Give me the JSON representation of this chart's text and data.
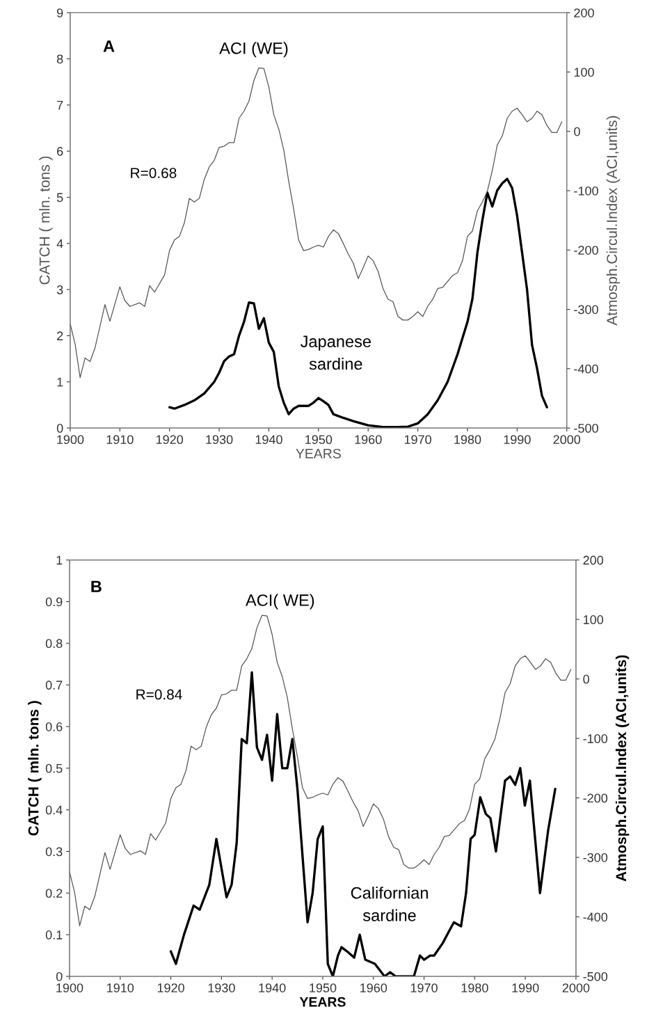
{
  "chart_data": [
    {
      "type": "line",
      "xlabel": "YEARS",
      "ylabel": "CATCH ( mln. tons )",
      "y2label": "Atmosph.Circul.Index (ACI,units)",
      "xlim": [
        1900,
        2000
      ],
      "xticks": [
        1900,
        1910,
        1920,
        1930,
        1940,
        1950,
        1960,
        1970,
        1980,
        1990,
        2000
      ],
      "ylim": [
        0,
        9
      ],
      "yticks": [
        0,
        1,
        2,
        3,
        4,
        5,
        6,
        7,
        8,
        9
      ],
      "y2lim": [
        -500,
        200
      ],
      "y2ticks": [
        -500,
        -400,
        -300,
        -200,
        -100,
        0,
        100,
        200
      ],
      "series": [
        {
          "name": "ACI (WE)",
          "axis": "y2",
          "color": "#555555",
          "x": [
            1900,
            1901,
            1902,
            1903,
            1904,
            1905,
            1907,
            1908,
            1910,
            1911,
            1912,
            1914,
            1915,
            1916,
            1917,
            1919,
            1920,
            1921,
            1922,
            1923,
            1924,
            1925,
            1926,
            1927,
            1928,
            1929,
            1930,
            1931,
            1932,
            1933,
            1934,
            1935,
            1936,
            1937,
            1938,
            1939,
            1940,
            1941,
            1942,
            1943,
            1944,
            1945,
            1946,
            1947,
            1948,
            1949,
            1950,
            1951,
            1952,
            1953,
            1954,
            1955,
            1956,
            1957,
            1958,
            1959,
            1960,
            1961,
            1962,
            1963,
            1964,
            1965,
            1966,
            1967,
            1968,
            1969,
            1970,
            1971,
            1972,
            1973,
            1974,
            1975,
            1977,
            1978,
            1979,
            1980,
            1981,
            1982,
            1983,
            1984,
            1985,
            1986,
            1987,
            1988,
            1989,
            1990,
            1991,
            1992,
            1993,
            1994,
            1995,
            1996,
            1997,
            1998,
            1999
          ],
          "values": [
            -324,
            -359,
            -415,
            -382,
            -388,
            -365,
            -292,
            -320,
            -262,
            -285,
            -295,
            -289,
            -295,
            -260,
            -271,
            -242,
            -201,
            -183,
            -177,
            -154,
            -113,
            -119,
            -113,
            -81,
            -60,
            -49,
            -27,
            -25,
            -19,
            -19,
            22,
            34,
            51,
            86,
            107,
            106,
            75,
            28,
            4,
            -31,
            -84,
            -131,
            -183,
            -201,
            -199,
            -195,
            -192,
            -195,
            -177,
            -166,
            -172,
            -189,
            -207,
            -222,
            -248,
            -230,
            -210,
            -218,
            -236,
            -265,
            -283,
            -287,
            -312,
            -318,
            -318,
            -312,
            -304,
            -312,
            -295,
            -283,
            -265,
            -263,
            -243,
            -238,
            -218,
            -177,
            -168,
            -134,
            -119,
            -101,
            -66,
            -23,
            -8,
            22,
            34,
            39,
            28,
            16,
            22,
            34,
            28,
            10,
            -2,
            -2,
            16
          ]
        },
        {
          "name": "Japanese\nsardine",
          "color": "#000000",
          "x": [
            1920,
            1921,
            1923,
            1925,
            1927,
            1929,
            1930,
            1931,
            1932,
            1933,
            1934,
            1935,
            1936,
            1937,
            1938,
            1939,
            1940,
            1941,
            1942,
            1943,
            1944,
            1945,
            1946,
            1948,
            1949,
            1950,
            1951,
            1952,
            1953,
            1955,
            1957,
            1960,
            1963,
            1966,
            1968,
            1970,
            1972,
            1974,
            1976,
            1978,
            1980,
            1981,
            1982,
            1983,
            1984,
            1985,
            1986,
            1987,
            1988,
            1989,
            1990,
            1991,
            1992,
            1993,
            1994,
            1995,
            1996
          ],
          "values": [
            0.45,
            0.42,
            0.5,
            0.6,
            0.75,
            1.0,
            1.2,
            1.45,
            1.55,
            1.6,
            2.0,
            2.3,
            2.72,
            2.7,
            2.15,
            2.38,
            1.85,
            1.65,
            0.9,
            0.55,
            0.3,
            0.42,
            0.48,
            0.48,
            0.55,
            0.65,
            0.58,
            0.5,
            0.3,
            0.22,
            0.15,
            0.06,
            0.02,
            0.02,
            0.03,
            0.1,
            0.3,
            0.6,
            1.0,
            1.6,
            2.3,
            2.8,
            3.8,
            4.5,
            5.1,
            4.8,
            5.15,
            5.3,
            5.4,
            5.2,
            4.6,
            3.8,
            3.0,
            1.8,
            1.3,
            0.7,
            0.45
          ]
        }
      ],
      "annotations": [
        "A",
        "R=0.68"
      ]
    },
    {
      "type": "line",
      "xlabel": "YEARS",
      "ylabel": "CATCH ( mln. tons )",
      "y2label": "Atmosph.Circul.Index (ACI,units)",
      "xlim": [
        1900,
        2000
      ],
      "xticks": [
        1900,
        1910,
        1920,
        1930,
        1940,
        1950,
        1960,
        1970,
        1980,
        1990,
        2000
      ],
      "ylim": [
        0,
        1
      ],
      "yticks": [
        0,
        0.1,
        0.2,
        0.3,
        0.4,
        0.5,
        0.6,
        0.7,
        0.8,
        0.9,
        1
      ],
      "y2lim": [
        -500,
        200
      ],
      "y2ticks": [
        -500,
        -400,
        -300,
        -200,
        -100,
        0,
        100,
        200
      ],
      "series": [
        {
          "name": "ACI( WE)",
          "axis": "y2",
          "color": "#555555",
          "x": [
            1900,
            1901,
            1902,
            1903,
            1904,
            1905,
            1907,
            1908,
            1910,
            1911,
            1912,
            1914,
            1915,
            1916,
            1917,
            1919,
            1920,
            1921,
            1922,
            1923,
            1924,
            1925,
            1926,
            1927,
            1928,
            1929,
            1930,
            1931,
            1932,
            1933,
            1934,
            1935,
            1936,
            1937,
            1938,
            1939,
            1940,
            1941,
            1942,
            1943,
            1944,
            1945,
            1946,
            1947,
            1948,
            1949,
            1950,
            1951,
            1952,
            1953,
            1954,
            1955,
            1956,
            1957,
            1958,
            1959,
            1960,
            1961,
            1962,
            1963,
            1964,
            1965,
            1966,
            1967,
            1968,
            1969,
            1970,
            1971,
            1972,
            1973,
            1974,
            1975,
            1977,
            1978,
            1979,
            1980,
            1981,
            1982,
            1983,
            1984,
            1985,
            1986,
            1987,
            1988,
            1989,
            1990,
            1991,
            1992,
            1993,
            1994,
            1995,
            1996,
            1997,
            1998,
            1999
          ],
          "values": [
            -324,
            -359,
            -415,
            -382,
            -388,
            -365,
            -292,
            -320,
            -262,
            -285,
            -295,
            -289,
            -295,
            -260,
            -271,
            -242,
            -201,
            -183,
            -177,
            -154,
            -113,
            -119,
            -113,
            -81,
            -60,
            -49,
            -27,
            -25,
            -19,
            -19,
            22,
            34,
            51,
            86,
            107,
            106,
            75,
            28,
            4,
            -31,
            -84,
            -131,
            -183,
            -201,
            -199,
            -195,
            -192,
            -195,
            -177,
            -166,
            -172,
            -189,
            -207,
            -222,
            -248,
            -230,
            -210,
            -218,
            -236,
            -265,
            -283,
            -287,
            -312,
            -318,
            -318,
            -312,
            -304,
            -312,
            -295,
            -283,
            -265,
            -263,
            -243,
            -238,
            -218,
            -177,
            -168,
            -134,
            -119,
            -101,
            -66,
            -23,
            -8,
            22,
            34,
            39,
            28,
            16,
            22,
            34,
            28,
            10,
            -2,
            -2,
            16
          ]
        },
        {
          "name": "Californian\nsardine",
          "color": "#000000",
          "x": [
            1920,
            1921,
            1922.6,
            1924.5,
            1925.7,
            1927.6,
            1929,
            1931,
            1932,
            1933,
            1934,
            1935,
            1936,
            1937,
            1938,
            1939,
            1940,
            1941,
            1942,
            1943,
            1944,
            1945,
            1947,
            1948,
            1949,
            1950,
            1951,
            1952,
            1953,
            1953.7,
            1954.8,
            1956.2,
            1957.3,
            1958.4,
            1960.3,
            1962.2,
            1963.3,
            1964.4,
            1968,
            1969.2,
            1970,
            1971.2,
            1972,
            1973.7,
            1975,
            1975.9,
            1977.3,
            1978.3,
            1979.2,
            1980,
            1981.1,
            1982.2,
            1983.1,
            1984.2,
            1986,
            1987,
            1988,
            1989,
            1989.9,
            1990.9,
            1992.9,
            1994.5,
            1995.9
          ],
          "values": [
            0.06,
            0.03,
            0.1,
            0.17,
            0.16,
            0.22,
            0.33,
            0.19,
            0.22,
            0.32,
            0.57,
            0.56,
            0.73,
            0.55,
            0.52,
            0.58,
            0.47,
            0.63,
            0.5,
            0.5,
            0.57,
            0.45,
            0.13,
            0.2,
            0.33,
            0.36,
            0.03,
            0.0,
            0.05,
            0.07,
            0.06,
            0.045,
            0.1,
            0.04,
            0.03,
            0.0,
            0.01,
            0.0,
            0.0,
            0.05,
            0.04,
            0.05,
            0.05,
            0.08,
            0.11,
            0.13,
            0.12,
            0.2,
            0.33,
            0.34,
            0.43,
            0.39,
            0.38,
            0.3,
            0.47,
            0.48,
            0.46,
            0.5,
            0.41,
            0.47,
            0.2,
            0.35,
            0.45
          ]
        }
      ],
      "annotations": [
        "B",
        "R=0.84"
      ]
    }
  ]
}
